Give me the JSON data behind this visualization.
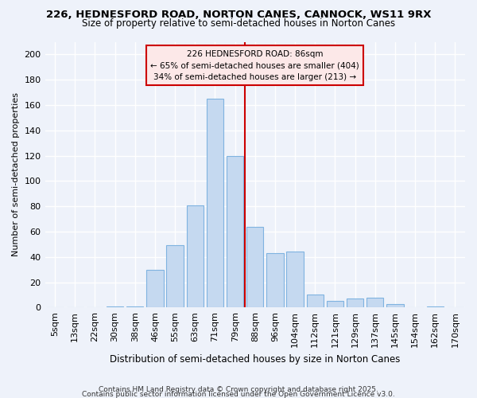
{
  "title1": "226, HEDNESFORD ROAD, NORTON CANES, CANNOCK, WS11 9RX",
  "title2": "Size of property relative to semi-detached houses in Norton Canes",
  "xlabel": "Distribution of semi-detached houses by size in Norton Canes",
  "ylabel": "Number of semi-detached properties",
  "categories": [
    "5sqm",
    "13sqm",
    "22sqm",
    "30sqm",
    "38sqm",
    "46sqm",
    "55sqm",
    "63sqm",
    "71sqm",
    "79sqm",
    "88sqm",
    "96sqm",
    "104sqm",
    "112sqm",
    "121sqm",
    "129sqm",
    "137sqm",
    "145sqm",
    "154sqm",
    "162sqm",
    "170sqm"
  ],
  "values": [
    0,
    0,
    0,
    1,
    1,
    30,
    49,
    81,
    165,
    120,
    64,
    43,
    44,
    10,
    5,
    7,
    8,
    3,
    0,
    1,
    0
  ],
  "bar_color": "#c5d9f0",
  "bar_edge_color": "#7fb3e0",
  "vline_index": 10,
  "vline_color": "#cc0000",
  "annotation_title": "226 HEDNESFORD ROAD: 86sqm",
  "annotation_line1": "← 65% of semi-detached houses are smaller (404)",
  "annotation_line2": "34% of semi-detached houses are larger (213) →",
  "annotation_box_facecolor": "#fce8e8",
  "annotation_border_color": "#cc0000",
  "ylim": [
    0,
    210
  ],
  "yticks": [
    0,
    20,
    40,
    60,
    80,
    100,
    120,
    140,
    160,
    180,
    200
  ],
  "footnote1": "Contains HM Land Registry data © Crown copyright and database right 2025.",
  "footnote2": "Contains public sector information licensed under the Open Government Licence v3.0.",
  "bg_color": "#eef2fa",
  "title_fontsize": 9.5,
  "subtitle_fontsize": 8.5
}
